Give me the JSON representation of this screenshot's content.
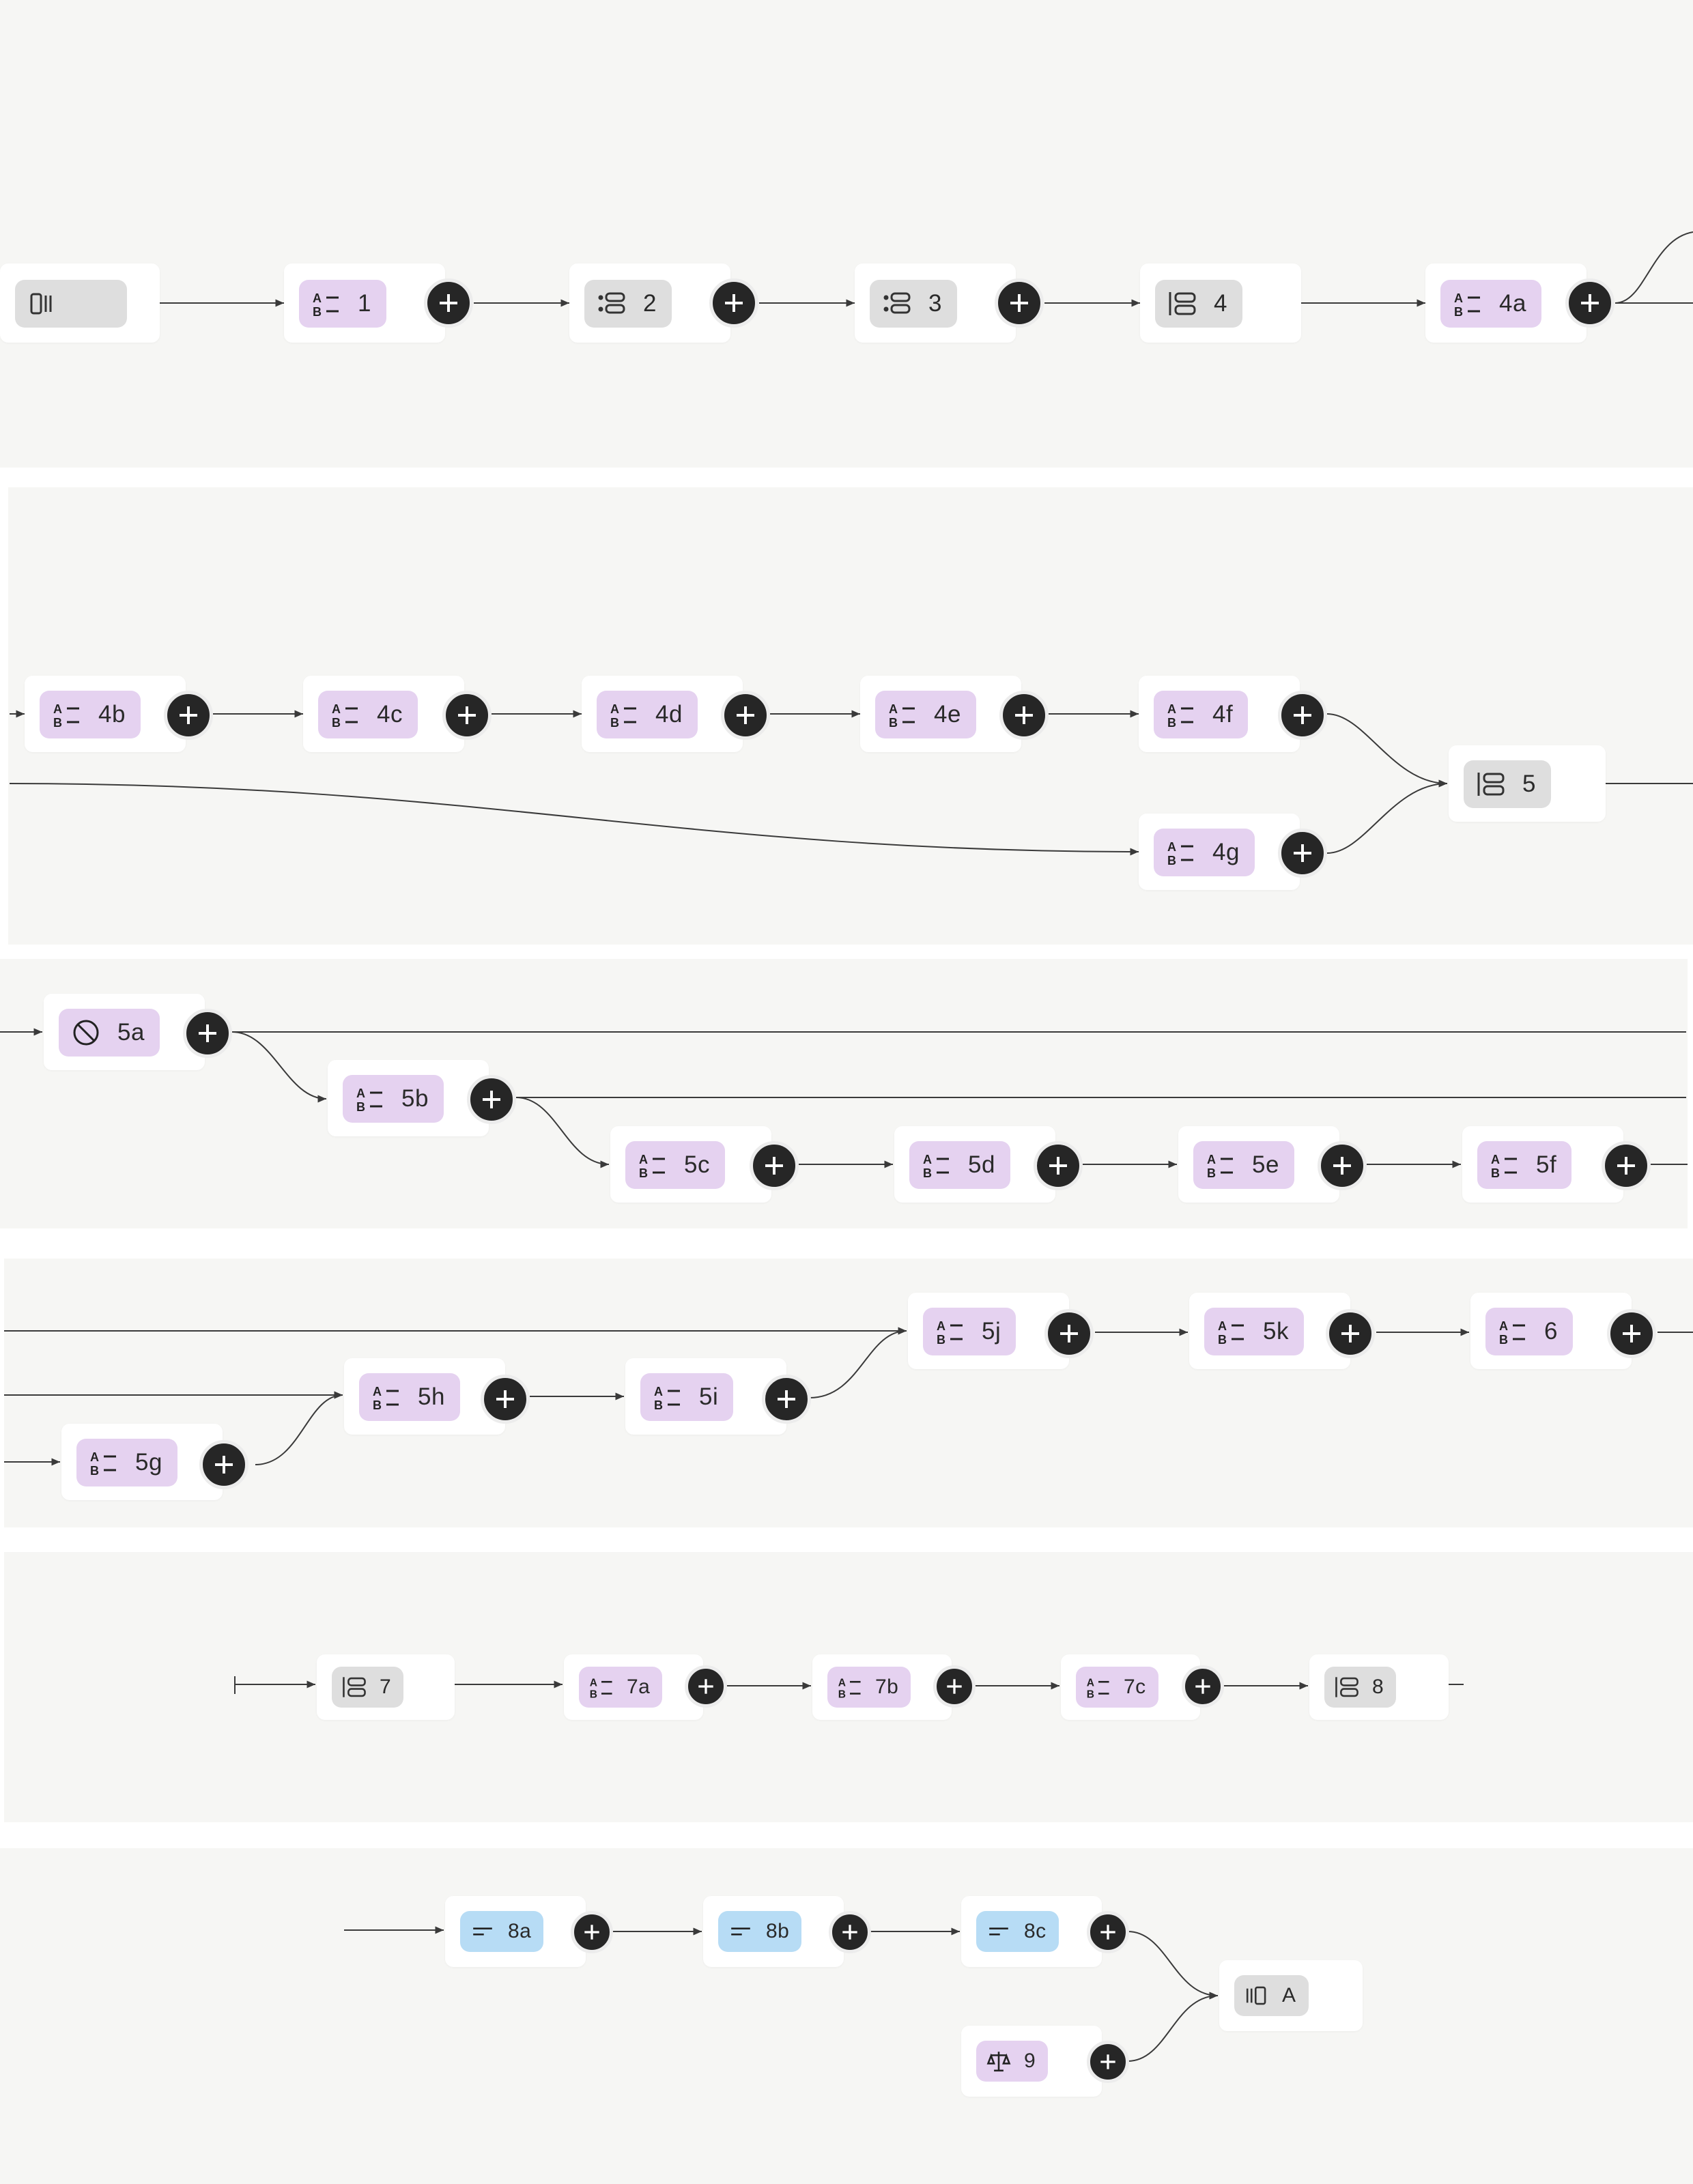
{
  "colors": {
    "panel_bg": "#f6f6f4",
    "node_bg": "#ffffff",
    "purple_pill": "#e5d2f0",
    "gray_pill": "#dedede",
    "blue_pill": "#b7dcf5",
    "add_button": "#262626",
    "edge": "#3a3a3a"
  },
  "add_button_label": "+",
  "rows": [
    {
      "nodes": [
        {
          "id": "start",
          "label": "",
          "icon": "panel-start-icon",
          "color": "gray",
          "add": false
        },
        {
          "id": "n1",
          "label": "1",
          "icon": "ab-list-icon",
          "color": "purple",
          "add": true
        },
        {
          "id": "n2",
          "label": "2",
          "icon": "list-icon",
          "color": "gray",
          "add": true
        },
        {
          "id": "n3",
          "label": "3",
          "icon": "list-icon",
          "color": "gray",
          "add": true
        },
        {
          "id": "n4",
          "label": "4",
          "icon": "group-icon",
          "color": "gray",
          "add": false
        },
        {
          "id": "n4a",
          "label": "4a",
          "icon": "ab-list-icon",
          "color": "purple",
          "add": true
        }
      ]
    },
    {
      "nodes": [
        {
          "id": "n4b",
          "label": "4b",
          "icon": "ab-list-icon",
          "color": "purple",
          "add": true
        },
        {
          "id": "n4c",
          "label": "4c",
          "icon": "ab-list-icon",
          "color": "purple",
          "add": true
        },
        {
          "id": "n4d",
          "label": "4d",
          "icon": "ab-list-icon",
          "color": "purple",
          "add": true
        },
        {
          "id": "n4e",
          "label": "4e",
          "icon": "ab-list-icon",
          "color": "purple",
          "add": true
        },
        {
          "id": "n4f",
          "label": "4f",
          "icon": "ab-list-icon",
          "color": "purple",
          "add": true
        },
        {
          "id": "n4g",
          "label": "4g",
          "icon": "ab-list-icon",
          "color": "purple",
          "add": true
        },
        {
          "id": "n5",
          "label": "5",
          "icon": "group-icon",
          "color": "gray",
          "add": false
        }
      ]
    },
    {
      "nodes": [
        {
          "id": "n5a",
          "label": "5a",
          "icon": "no-entry-icon",
          "color": "purple",
          "add": true
        },
        {
          "id": "n5b",
          "label": "5b",
          "icon": "ab-list-icon",
          "color": "purple",
          "add": true
        },
        {
          "id": "n5c",
          "label": "5c",
          "icon": "ab-list-icon",
          "color": "purple",
          "add": true
        },
        {
          "id": "n5d",
          "label": "5d",
          "icon": "ab-list-icon",
          "color": "purple",
          "add": true
        },
        {
          "id": "n5e",
          "label": "5e",
          "icon": "ab-list-icon",
          "color": "purple",
          "add": true
        },
        {
          "id": "n5f",
          "label": "5f",
          "icon": "ab-list-icon",
          "color": "purple",
          "add": true
        }
      ]
    },
    {
      "nodes": [
        {
          "id": "n5g",
          "label": "5g",
          "icon": "ab-list-icon",
          "color": "purple",
          "add": true
        },
        {
          "id": "n5h",
          "label": "5h",
          "icon": "ab-list-icon",
          "color": "purple",
          "add": true
        },
        {
          "id": "n5i",
          "label": "5i",
          "icon": "ab-list-icon",
          "color": "purple",
          "add": true
        },
        {
          "id": "n5j",
          "label": "5j",
          "icon": "ab-list-icon",
          "color": "purple",
          "add": true
        },
        {
          "id": "n5k",
          "label": "5k",
          "icon": "ab-list-icon",
          "color": "purple",
          "add": true
        },
        {
          "id": "n6",
          "label": "6",
          "icon": "ab-list-icon",
          "color": "purple",
          "add": true
        }
      ]
    },
    {
      "nodes": [
        {
          "id": "n7",
          "label": "7",
          "icon": "group-icon",
          "color": "gray",
          "add": false
        },
        {
          "id": "n7a",
          "label": "7a",
          "icon": "ab-list-icon",
          "color": "purple",
          "add": true
        },
        {
          "id": "n7b",
          "label": "7b",
          "icon": "ab-list-icon",
          "color": "purple",
          "add": true
        },
        {
          "id": "n7c",
          "label": "7c",
          "icon": "ab-list-icon",
          "color": "purple",
          "add": true
        },
        {
          "id": "n8",
          "label": "8",
          "icon": "group-icon",
          "color": "gray",
          "add": false
        }
      ]
    },
    {
      "nodes": [
        {
          "id": "n8a",
          "label": "8a",
          "icon": "text-lines-icon",
          "color": "blue",
          "add": true
        },
        {
          "id": "n8b",
          "label": "8b",
          "icon": "text-lines-icon",
          "color": "blue",
          "add": true
        },
        {
          "id": "n8c",
          "label": "8c",
          "icon": "text-lines-icon",
          "color": "blue",
          "add": true
        },
        {
          "id": "n9",
          "label": "9",
          "icon": "scale-icon",
          "color": "purple",
          "add": true
        },
        {
          "id": "nA",
          "label": "A",
          "icon": "panel-end-icon",
          "color": "gray",
          "add": false
        }
      ]
    }
  ]
}
